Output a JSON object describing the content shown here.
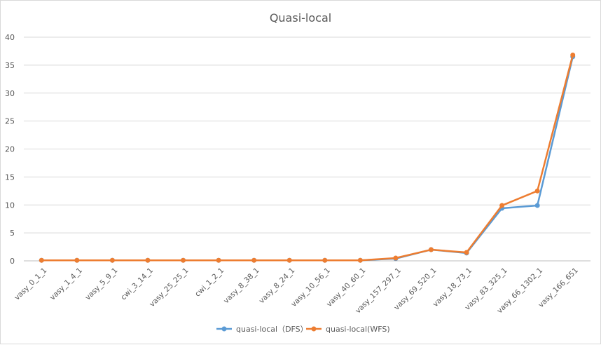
{
  "chart_data": {
    "type": "line",
    "title": "Quasi-local",
    "categories": [
      "vasy_0_1_1",
      "vasy_1_4_1",
      "vasy_5_9_1",
      "cwi_3_14_1",
      "vasy_25_25_1",
      "cwi_1_2_1",
      "vasy_8_38_1",
      "vasy_8_24_1",
      "vasy_10_56_1",
      "vasy_40_60_1",
      "vasy_157_297_1",
      "vasy_69_520_1",
      "vasy_18_73_1",
      "vasy_83_325_1",
      "vasy_66_1302_1",
      "vasy_166_651"
    ],
    "series": [
      {
        "name": "quasi-local（DFS）",
        "color": "#5b9bd5",
        "values": [
          0.1,
          0.1,
          0.1,
          0.1,
          0.1,
          0.1,
          0.1,
          0.1,
          0.1,
          0.1,
          0.4,
          2.0,
          1.4,
          9.4,
          9.9,
          36.5
        ]
      },
      {
        "name": "quasi-local(WFS)",
        "color": "#ed7d31",
        "values": [
          0.1,
          0.1,
          0.1,
          0.1,
          0.1,
          0.1,
          0.1,
          0.1,
          0.1,
          0.1,
          0.5,
          2.0,
          1.5,
          9.9,
          12.5,
          36.8
        ]
      }
    ],
    "ylim": [
      0,
      40
    ],
    "yticks": [
      0,
      5,
      10,
      15,
      20,
      25,
      30,
      35,
      40
    ],
    "xlabel": "",
    "ylabel": "",
    "grid": true,
    "legend": "bottom"
  }
}
